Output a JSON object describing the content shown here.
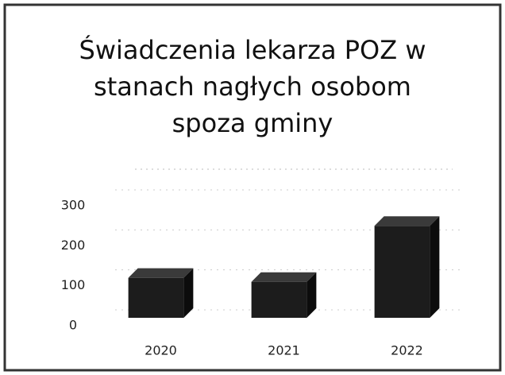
{
  "chart_data": {
    "type": "bar3d",
    "title": "Świadczenia lekarza POZ w stanach nagłych osobom spoza gminy",
    "categories": [
      "2020",
      "2021",
      "2022"
    ],
    "values": [
      100,
      90,
      230
    ],
    "color": "#1c1c1c",
    "ylim": [
      0,
      300
    ],
    "yticks": [
      0,
      100,
      200,
      300
    ],
    "grid": true
  }
}
